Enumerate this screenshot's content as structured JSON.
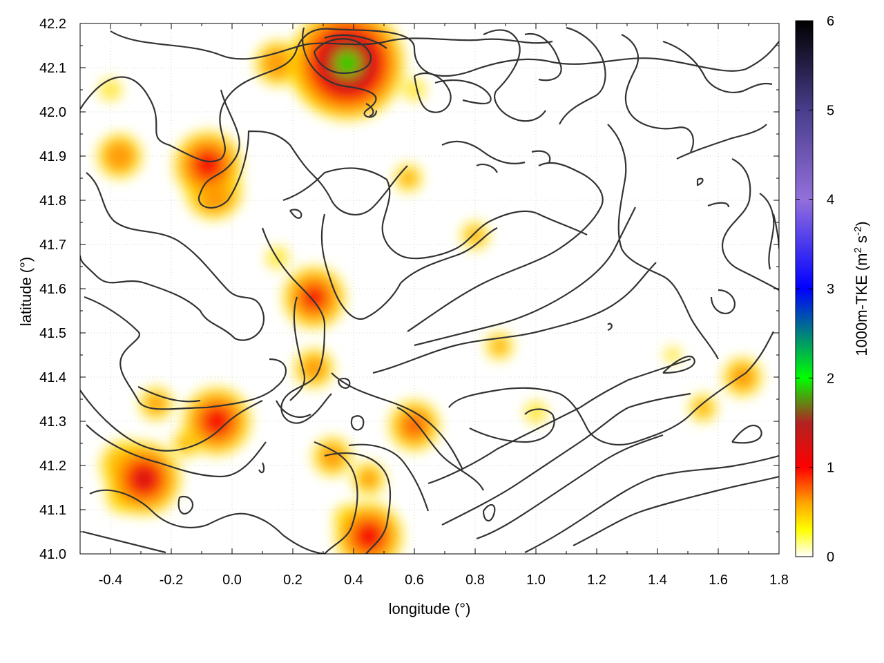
{
  "chart_data": {
    "type": "heatmap",
    "title": "",
    "xlabel": "longitude (°)",
    "ylabel": "latitude (°)",
    "colorbar_label": "1000m-TKE (m² s⁻²)",
    "colorbar_label_base": "1000m-TKE (m",
    "colorbar_label_sup1": "2",
    "colorbar_label_mid": " s",
    "colorbar_label_sup2": "-2",
    "colorbar_label_end": ")",
    "xlim": [
      -0.5,
      1.8
    ],
    "ylim": [
      41.0,
      42.2
    ],
    "clim": [
      0,
      6
    ],
    "x_ticks": [
      -0.4,
      -0.2,
      0.0,
      0.2,
      0.4,
      0.6,
      0.8,
      1.0,
      1.2,
      1.4,
      1.6,
      1.8
    ],
    "x_tick_labels": [
      "-0.4",
      "-0.2",
      "0.0",
      "0.2",
      "0.4",
      "0.6",
      "0.8",
      "1.0",
      "1.2",
      "1.4",
      "1.6",
      "1.8"
    ],
    "y_ticks": [
      41.0,
      41.1,
      41.2,
      41.3,
      41.4,
      41.5,
      41.6,
      41.7,
      41.8,
      41.9,
      42.0,
      42.1,
      42.2
    ],
    "y_tick_labels": [
      "41.0",
      "41.1",
      "41.2",
      "41.3",
      "41.4",
      "41.5",
      "41.6",
      "41.7",
      "41.8",
      "41.9",
      "42.0",
      "42.1",
      "42.2"
    ],
    "colorbar_ticks": [
      0,
      1,
      2,
      3,
      4,
      5,
      6
    ],
    "colorbar_tick_labels": [
      "0",
      "1",
      "2",
      "3",
      "4",
      "5",
      "6"
    ],
    "colormap": [
      {
        "v": 0.0,
        "color": "#ffffff"
      },
      {
        "v": 0.3,
        "color": "#ffff00"
      },
      {
        "v": 0.6,
        "color": "#ffa500"
      },
      {
        "v": 1.0,
        "color": "#ff0000"
      },
      {
        "v": 1.5,
        "color": "#b22222"
      },
      {
        "v": 2.0,
        "color": "#00ff00"
      },
      {
        "v": 2.5,
        "color": "#008080"
      },
      {
        "v": 3.0,
        "color": "#0000ff"
      },
      {
        "v": 4.0,
        "color": "#9370db"
      },
      {
        "v": 5.0,
        "color": "#483d8b"
      },
      {
        "v": 6.0,
        "color": "#000000"
      }
    ],
    "grid": true,
    "hotspots": [
      {
        "lon": -0.29,
        "lat": 41.17,
        "tke": 1.3
      },
      {
        "lon": -0.35,
        "lat": 41.2,
        "tke": 0.9
      },
      {
        "lon": -0.36,
        "lat": 41.13,
        "tke": 0.6
      },
      {
        "lon": 0.33,
        "lat": 42.1,
        "tke": 1.5
      },
      {
        "lon": 0.38,
        "lat": 42.11,
        "tke": 2.0
      },
      {
        "lon": 0.28,
        "lat": 42.12,
        "tke": 0.9
      },
      {
        "lon": 0.15,
        "lat": 42.11,
        "tke": 0.8
      },
      {
        "lon": -0.08,
        "lat": 41.88,
        "tke": 1.2
      },
      {
        "lon": -0.06,
        "lat": 41.82,
        "tke": 1.0
      },
      {
        "lon": -0.37,
        "lat": 41.9,
        "tke": 0.8
      },
      {
        "lon": -0.4,
        "lat": 42.05,
        "tke": 0.4
      },
      {
        "lon": 0.27,
        "lat": 41.58,
        "tke": 1.1
      },
      {
        "lon": 0.27,
        "lat": 41.42,
        "tke": 0.7
      },
      {
        "lon": -0.05,
        "lat": 41.3,
        "tke": 1.2
      },
      {
        "lon": -0.25,
        "lat": 41.34,
        "tke": 0.6
      },
      {
        "lon": 0.45,
        "lat": 41.04,
        "tke": 1.2
      },
      {
        "lon": 0.45,
        "lat": 41.17,
        "tke": 0.6
      },
      {
        "lon": 0.38,
        "lat": 41.08,
        "tke": 0.5
      },
      {
        "lon": 0.6,
        "lat": 41.29,
        "tke": 0.9
      },
      {
        "lon": 0.33,
        "lat": 41.22,
        "tke": 0.7
      },
      {
        "lon": 0.8,
        "lat": 41.72,
        "tke": 0.5
      },
      {
        "lon": 0.58,
        "lat": 41.85,
        "tke": 0.5
      },
      {
        "lon": 0.88,
        "lat": 41.47,
        "tke": 0.5
      },
      {
        "lon": 1.68,
        "lat": 41.4,
        "tke": 0.7
      },
      {
        "lon": 1.55,
        "lat": 41.33,
        "tke": 0.5
      },
      {
        "lon": 1.45,
        "lat": 41.45,
        "tke": 0.3
      },
      {
        "lon": 0.15,
        "lat": 41.67,
        "tke": 0.4
      },
      {
        "lon": 0.6,
        "lat": 42.05,
        "tke": 0.4
      },
      {
        "lon": 1.0,
        "lat": 41.32,
        "tke": 0.4
      },
      {
        "lon": -0.15,
        "lat": 41.25,
        "tke": 0.5
      }
    ]
  }
}
